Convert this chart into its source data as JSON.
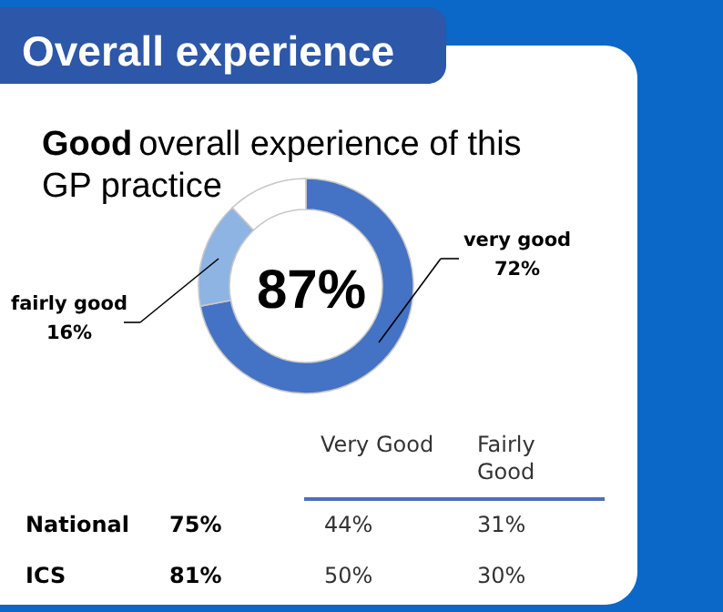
{
  "chart_data": {
    "type": "donut",
    "title": "Overall experience",
    "subtitle": "Good overall experience of this GP practice",
    "categories": [
      "very good",
      "fairly good",
      null
    ],
    "values": [
      72,
      16,
      12
    ],
    "colors": [
      "#4472c4",
      "#8db4e2",
      "#ffffff"
    ],
    "value_labels": [
      "72%",
      "16%",
      null
    ],
    "annotations": [
      "87%",
      "Very Good",
      "Fairly Good",
      "National",
      "75%",
      "44%",
      "31%",
      "ICS",
      "81%",
      "50%",
      "30%"
    ]
  }
}
